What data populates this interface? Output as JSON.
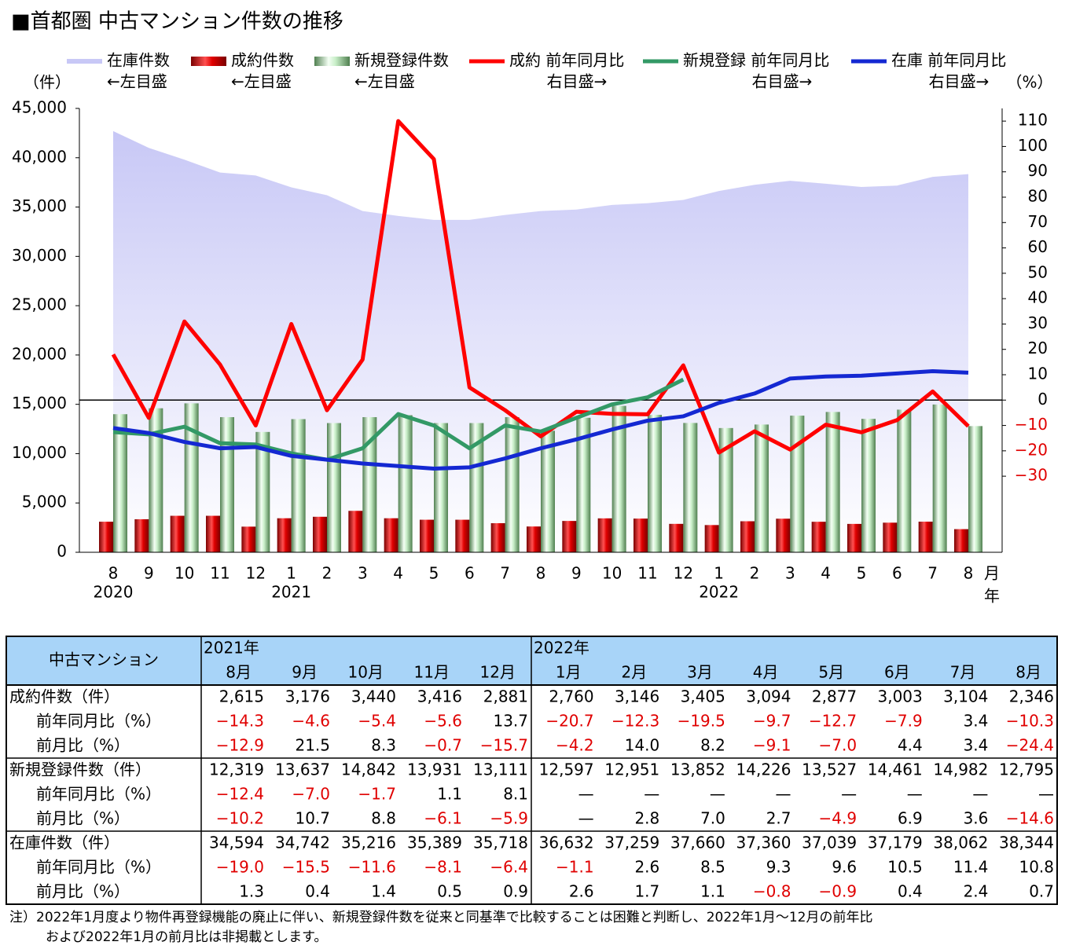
{
  "chart_data": {
    "type": "combo",
    "title": "■首都圏 中古マンション件数の推移",
    "y_label": "（件）",
    "y2_label": "（%）",
    "x_unit": "月",
    "year_unit": "年",
    "categories": [
      "8",
      "9",
      "10",
      "11",
      "12",
      "1",
      "2",
      "3",
      "4",
      "5",
      "6",
      "7",
      "8",
      "9",
      "10",
      "11",
      "12",
      "1",
      "2",
      "3",
      "4",
      "5",
      "6",
      "7",
      "8"
    ],
    "years": [
      "2020",
      null,
      null,
      null,
      null,
      "2021",
      null,
      null,
      null,
      null,
      null,
      null,
      null,
      null,
      null,
      null,
      null,
      "2022",
      null,
      null,
      null,
      null,
      null,
      null,
      null
    ],
    "ylim": [
      0,
      45000
    ],
    "yticks": [
      0,
      {
        "value": 5000,
        "label": "5,000"
      },
      {
        "value": 10000,
        "label": "10,000"
      },
      {
        "value": 15000,
        "label": "15,000"
      },
      {
        "value": 20000,
        "label": "20,000"
      },
      {
        "value": 25000,
        "label": "25,000"
      },
      {
        "value": 30000,
        "label": "30,000"
      },
      {
        "value": 35000,
        "label": "35,000"
      },
      {
        "value": 40000,
        "label": "40,000"
      },
      {
        "value": 45000,
        "label": "45,000"
      }
    ],
    "y2lim": [
      -60,
      115
    ],
    "y2ticks": [
      {
        "value": -30,
        "label": "−30"
      },
      {
        "value": -20,
        "label": "−20"
      },
      {
        "value": -10,
        "label": "−10"
      },
      0,
      10,
      20,
      30,
      40,
      50,
      60,
      70,
      80,
      90,
      100,
      110
    ],
    "series": [
      {
        "name": "在庫件数",
        "axis_note": "←左目盛",
        "type": "area",
        "axis": "y",
        "color": "#c8c8f6",
        "values": [
          42700,
          41000,
          39800,
          38500,
          38200,
          37000,
          36200,
          34600,
          34100,
          33700,
          33700,
          34200,
          34594,
          34742,
          35216,
          35389,
          35718,
          36632,
          37259,
          37660,
          37360,
          37039,
          37179,
          38062,
          38344
        ]
      },
      {
        "name": "成約件数",
        "axis_note": "←左目盛",
        "type": "bar",
        "axis": "y",
        "color": "#e00000",
        "values": [
          3100,
          3350,
          3700,
          3700,
          2600,
          3450,
          3600,
          4200,
          3450,
          3300,
          3300,
          2950,
          2615,
          3176,
          3440,
          3416,
          2881,
          2760,
          3146,
          3405,
          3094,
          2877,
          3003,
          3104,
          2346
        ]
      },
      {
        "name": "新規登録件数",
        "axis_note": "←左目盛",
        "type": "bar",
        "axis": "y",
        "color": "#c8eec8",
        "values": [
          14000,
          14600,
          15100,
          13700,
          12200,
          13500,
          13100,
          13700,
          13900,
          13100,
          13100,
          13700,
          12319,
          13637,
          14842,
          13931,
          13111,
          12597,
          12951,
          13852,
          14226,
          13527,
          14461,
          14982,
          12795
        ]
      },
      {
        "name": "成約 前年同月比",
        "axis_note": "右目盛→",
        "type": "line",
        "axis": "y2",
        "color": "#ff0000",
        "values": [
          18,
          -7,
          31,
          14,
          -10,
          30,
          -4,
          16,
          110,
          95,
          5,
          -4,
          -14.3,
          -4.6,
          -5.4,
          -5.6,
          13.7,
          -20.7,
          -12.3,
          -19.5,
          -9.7,
          -12.7,
          -7.9,
          3.4,
          -10.3
        ]
      },
      {
        "name": "新規登録 前年同月比",
        "axis_note": "右目盛→",
        "type": "line",
        "axis": "y2",
        "color": "#339966",
        "values": [
          -12.6,
          -13.5,
          -10.5,
          -17,
          -17.5,
          -21,
          -23.5,
          -19,
          -5.5,
          -10,
          -19,
          -10,
          -12.4,
          -7.0,
          -1.7,
          1.1,
          8.1,
          null,
          null,
          null,
          null,
          null,
          null,
          null,
          null
        ]
      },
      {
        "name": "在庫 前年同月比",
        "axis_note": "右目盛→",
        "type": "line",
        "axis": "y2",
        "color": "#1428d2",
        "values": [
          -11,
          -13,
          -16.5,
          -19,
          -18.5,
          -22,
          -23.5,
          -25,
          -26,
          -27,
          -26.5,
          -23,
          -19.0,
          -15.5,
          -11.6,
          -8.1,
          -6.4,
          -1.1,
          2.6,
          8.5,
          9.3,
          9.6,
          10.5,
          11.4,
          10.8
        ]
      }
    ]
  },
  "table": {
    "header": "中古マンション",
    "groups": [
      {
        "label": "2021年",
        "months": [
          "8月",
          "9月",
          "10月",
          "11月",
          "12月"
        ]
      },
      {
        "label": "2022年",
        "months": [
          "1月",
          "2月",
          "3月",
          "4月",
          "5月",
          "6月",
          "7月",
          "8月"
        ]
      }
    ],
    "rows": [
      {
        "label": "成約件数（件）",
        "values": [
          "2,615",
          "3,176",
          "3,440",
          "3,416",
          "2,881",
          "2,760",
          "3,146",
          "3,405",
          "3,094",
          "2,877",
          "3,003",
          "3,104",
          "2,346"
        ]
      },
      {
        "label": "前年同月比（%）",
        "values": [
          "−14.3",
          "−4.6",
          "−5.4",
          "−5.6",
          "13.7",
          "−20.7",
          "−12.3",
          "−19.5",
          "−9.7",
          "−12.7",
          "−7.9",
          "3.4",
          "−10.3"
        ]
      },
      {
        "label": "前月比（%）",
        "values": [
          "−12.9",
          "21.5",
          "8.3",
          "−0.7",
          "−15.7",
          "−4.2",
          "14.0",
          "8.2",
          "−9.1",
          "−7.0",
          "4.4",
          "3.4",
          "−24.4"
        ]
      },
      {
        "label": "新規登録件数（件）",
        "values": [
          "12,319",
          "13,637",
          "14,842",
          "13,931",
          "13,111",
          "12,597",
          "12,951",
          "13,852",
          "14,226",
          "13,527",
          "14,461",
          "14,982",
          "12,795"
        ]
      },
      {
        "label": "前年同月比（%）",
        "values": [
          "−12.4",
          "−7.0",
          "−1.7",
          "1.1",
          "8.1",
          "—",
          "—",
          "—",
          "—",
          "—",
          "—",
          "—",
          "—"
        ]
      },
      {
        "label": "前月比（%）",
        "values": [
          "−10.2",
          "10.7",
          "8.8",
          "−6.1",
          "−5.9",
          "—",
          "2.8",
          "7.0",
          "2.7",
          "−4.9",
          "6.9",
          "3.6",
          "−14.6"
        ]
      },
      {
        "label": "在庫件数（件）",
        "values": [
          "34,594",
          "34,742",
          "35,216",
          "35,389",
          "35,718",
          "36,632",
          "37,259",
          "37,660",
          "37,360",
          "37,039",
          "37,179",
          "38,062",
          "38,344"
        ]
      },
      {
        "label": "前年同月比（%）",
        "values": [
          "−19.0",
          "−15.5",
          "−11.6",
          "−8.1",
          "−6.4",
          "−1.1",
          "2.6",
          "8.5",
          "9.3",
          "9.6",
          "10.5",
          "11.4",
          "10.8"
        ]
      },
      {
        "label": "前月比（%）",
        "values": [
          "1.3",
          "0.4",
          "1.4",
          "0.5",
          "0.9",
          "2.6",
          "1.7",
          "1.1",
          "−0.8",
          "−0.9",
          "0.4",
          "2.4",
          "0.7"
        ]
      }
    ]
  },
  "notes": [
    "注）2022年1月度より物件再登録機能の廃止に伴い、新規登録件数を従来と同基準で比較することは困難と判断し、2022年1月～12月の前年比",
    "および2022年1月の前月比は非掲載とします。"
  ]
}
